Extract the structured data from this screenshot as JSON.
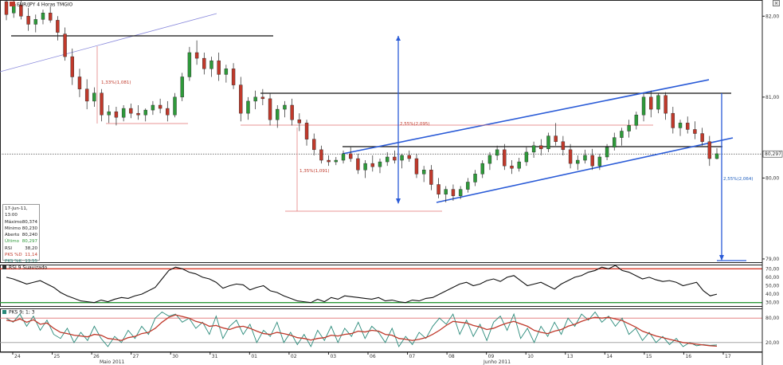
{
  "header": {
    "title": "EUR/JPY 4 Horas TMGIO",
    "rsi_label": "RSI 9 Suavizado",
    "stoch_label": "PKS 9; 1; 3"
  },
  "window": {
    "close_icon": "close-icon"
  },
  "info_panel": {
    "date": "17-Jun-11, 13:00",
    "rows": [
      {
        "label": "Máximo",
        "value": "80,374"
      },
      {
        "label": "Mínimo",
        "value": "80,230"
      },
      {
        "label": "Aberto",
        "value": "80,240"
      },
      {
        "label": "Último",
        "value": "80,297",
        "color": "#2e9a3a"
      },
      {
        "label": "RSI",
        "value": "38,20"
      },
      {
        "label": "PKS %D",
        "value": "11,14",
        "color": "#c0392b"
      },
      {
        "label": "PKS %K",
        "value": "13,55",
        "color": "#2a8a7a"
      }
    ]
  },
  "annotations": {
    "pct1": "1,33%(1,081)",
    "pct2": "2,55%(2,095)",
    "pct3": "1,35%(1,091)",
    "pct4": "2,55%(2,064)"
  },
  "chart_data": [
    {
      "type": "candlestick",
      "panel": "price",
      "y_ticks": [
        "82,00",
        "81,00",
        "80,00",
        "79,00"
      ],
      "ylim": [
        78.95,
        82.2
      ],
      "last_price": "80,297",
      "x_ticks": [
        "24",
        "25",
        "26",
        "27",
        "30",
        "31",
        "01",
        "02",
        "03",
        "06",
        "07",
        "08",
        "09",
        "10",
        "13",
        "14",
        "15",
        "16",
        "17"
      ],
      "x_month_labels": [
        "Maio 2011",
        "Junho 2011"
      ],
      "candles": [
        [
          82.18,
          82.26,
          81.95,
          82.02
        ],
        [
          82.04,
          82.2,
          81.98,
          82.15
        ],
        [
          82.14,
          82.22,
          81.96,
          82.0
        ],
        [
          82.0,
          82.1,
          81.82,
          81.9
        ],
        [
          81.9,
          82.02,
          81.8,
          81.96
        ],
        [
          81.96,
          82.08,
          81.9,
          82.04
        ],
        [
          82.04,
          82.12,
          81.92,
          81.95
        ],
        [
          81.95,
          82.0,
          81.7,
          81.8
        ],
        [
          81.78,
          81.86,
          81.45,
          81.5
        ],
        [
          81.5,
          81.6,
          81.15,
          81.25
        ],
        [
          81.25,
          81.35,
          81.0,
          81.1
        ],
        [
          81.1,
          81.22,
          80.85,
          80.95
        ],
        [
          80.95,
          81.12,
          80.88,
          81.05
        ],
        [
          81.05,
          81.1,
          80.7,
          80.78
        ],
        [
          80.78,
          80.9,
          80.68,
          80.82
        ],
        [
          80.82,
          80.88,
          80.65,
          80.75
        ],
        [
          80.75,
          80.9,
          80.7,
          80.86
        ],
        [
          80.86,
          80.92,
          80.74,
          80.8
        ],
        [
          80.8,
          80.9,
          80.72,
          80.78
        ],
        [
          80.78,
          80.86,
          80.7,
          80.84
        ],
        [
          80.84,
          80.95,
          80.78,
          80.9
        ],
        [
          80.9,
          80.98,
          80.8,
          80.86
        ],
        [
          80.86,
          80.95,
          80.7,
          80.78
        ],
        [
          80.78,
          81.05,
          80.75,
          81.0
        ],
        [
          81.0,
          81.3,
          80.95,
          81.25
        ],
        [
          81.25,
          81.62,
          81.2,
          81.55
        ],
        [
          81.55,
          81.7,
          81.4,
          81.48
        ],
        [
          81.48,
          81.55,
          81.28,
          81.35
        ],
        [
          81.35,
          81.5,
          81.25,
          81.45
        ],
        [
          81.45,
          81.55,
          81.2,
          81.28
        ],
        [
          81.28,
          81.4,
          81.18,
          81.35
        ],
        [
          81.35,
          81.42,
          81.1,
          81.15
        ],
        [
          81.15,
          81.25,
          80.7,
          80.8
        ],
        [
          80.8,
          81.0,
          80.72,
          80.95
        ],
        [
          80.95,
          81.08,
          80.85,
          81.0
        ],
        [
          81.0,
          81.1,
          80.9,
          80.98
        ],
        [
          80.98,
          81.05,
          80.65,
          80.72
        ],
        [
          80.72,
          80.9,
          80.62,
          80.85
        ],
        [
          80.85,
          80.95,
          80.75,
          80.9
        ],
        [
          80.9,
          80.98,
          80.65,
          80.72
        ],
        [
          80.72,
          80.8,
          80.58,
          80.68
        ],
        [
          80.68,
          80.72,
          80.4,
          80.48
        ],
        [
          80.48,
          80.55,
          80.28,
          80.35
        ],
        [
          80.35,
          80.4,
          80.18,
          80.22
        ],
        [
          80.22,
          80.28,
          80.15,
          80.2
        ],
        [
          80.2,
          80.26,
          80.16,
          80.22
        ],
        [
          80.22,
          80.34,
          80.18,
          80.3
        ],
        [
          80.3,
          80.38,
          80.2,
          80.24
        ],
        [
          80.24,
          80.3,
          80.05,
          80.1
        ],
        [
          80.1,
          80.22,
          80.0,
          80.18
        ],
        [
          80.18,
          80.28,
          80.08,
          80.14
        ],
        [
          80.14,
          80.24,
          80.06,
          80.2
        ],
        [
          80.2,
          80.32,
          80.15,
          80.26
        ],
        [
          80.26,
          80.34,
          80.18,
          80.22
        ],
        [
          80.22,
          80.3,
          80.12,
          80.28
        ],
        [
          80.28,
          80.34,
          80.2,
          80.24
        ],
        [
          80.24,
          80.3,
          80.0,
          80.05
        ],
        [
          80.05,
          80.15,
          79.95,
          80.1
        ],
        [
          80.1,
          80.16,
          79.85,
          79.92
        ],
        [
          79.92,
          80.0,
          79.75,
          79.8
        ],
        [
          79.8,
          79.9,
          79.7,
          79.86
        ],
        [
          79.86,
          79.92,
          79.72,
          79.78
        ],
        [
          79.78,
          79.9,
          79.74,
          79.86
        ],
        [
          79.86,
          80.0,
          79.82,
          79.95
        ],
        [
          79.95,
          80.1,
          79.9,
          80.05
        ],
        [
          80.05,
          80.22,
          80.0,
          80.18
        ],
        [
          80.18,
          80.32,
          80.1,
          80.28
        ],
        [
          80.28,
          80.4,
          80.22,
          80.35
        ],
        [
          80.35,
          80.42,
          80.1,
          80.15
        ],
        [
          80.15,
          80.22,
          80.05,
          80.12
        ],
        [
          80.12,
          80.25,
          80.08,
          80.2
        ],
        [
          80.2,
          80.38,
          80.15,
          80.32
        ],
        [
          80.32,
          80.45,
          80.25,
          80.4
        ],
        [
          80.4,
          80.48,
          80.28,
          80.36
        ],
        [
          80.36,
          80.56,
          80.32,
          80.52
        ],
        [
          80.52,
          80.68,
          80.4,
          80.45
        ],
        [
          80.45,
          80.52,
          80.28,
          80.35
        ],
        [
          80.35,
          80.42,
          80.12,
          80.18
        ],
        [
          80.18,
          80.28,
          80.1,
          80.22
        ],
        [
          80.22,
          80.35,
          80.18,
          80.28
        ],
        [
          80.28,
          80.36,
          80.1,
          80.15
        ],
        [
          80.15,
          80.3,
          80.1,
          80.26
        ],
        [
          80.26,
          80.42,
          80.22,
          80.38
        ],
        [
          80.38,
          80.56,
          80.34,
          80.5
        ],
        [
          80.5,
          80.62,
          80.4,
          80.58
        ],
        [
          80.58,
          80.72,
          80.5,
          80.65
        ],
        [
          80.65,
          80.82,
          80.6,
          80.78
        ],
        [
          80.78,
          81.05,
          80.7,
          81.0
        ],
        [
          81.0,
          81.08,
          80.75,
          80.85
        ],
        [
          80.85,
          81.05,
          80.8,
          81.02
        ],
        [
          81.02,
          81.06,
          80.72,
          80.8
        ],
        [
          80.8,
          80.88,
          80.55,
          80.62
        ],
        [
          80.62,
          80.72,
          80.52,
          80.68
        ],
        [
          80.68,
          80.76,
          80.55,
          80.6
        ],
        [
          80.6,
          80.7,
          80.48,
          80.55
        ],
        [
          80.55,
          80.62,
          80.4,
          80.45
        ],
        [
          80.45,
          80.52,
          80.15,
          80.24
        ],
        [
          80.24,
          80.37,
          80.23,
          80.3
        ]
      ]
    },
    {
      "type": "line",
      "panel": "rsi",
      "name": "RSI 9 Suavizado",
      "y_ticks": [
        "70,00",
        "60,00",
        "50,00",
        "40,00",
        "30,00"
      ],
      "ylim": [
        25,
        75
      ],
      "levels": [
        70,
        30
      ],
      "values": [
        60,
        58,
        55,
        52,
        54,
        56,
        52,
        48,
        42,
        38,
        35,
        32,
        31,
        30,
        33,
        31,
        34,
        36,
        35,
        38,
        40,
        44,
        48,
        58,
        68,
        72,
        70,
        66,
        64,
        60,
        58,
        54,
        47,
        50,
        52,
        51,
        45,
        48,
        50,
        44,
        42,
        38,
        35,
        32,
        31,
        30,
        34,
        31,
        36,
        34,
        38,
        37,
        36,
        35,
        34,
        36,
        32,
        33,
        31,
        30,
        33,
        32,
        35,
        36,
        40,
        44,
        48,
        52,
        54,
        50,
        52,
        56,
        58,
        55,
        60,
        62,
        56,
        50,
        52,
        54,
        50,
        46,
        52,
        56,
        60,
        62,
        66,
        68,
        72,
        70,
        74,
        68,
        66,
        62,
        58,
        60,
        57,
        55,
        56,
        54,
        50,
        52,
        54,
        44,
        38,
        40
      ]
    },
    {
      "type": "line",
      "panel": "stochastic",
      "name": "PKS 9; 1; 3",
      "y_ticks": [
        "80,00",
        "20,00"
      ],
      "ylim": [
        0,
        100
      ],
      "levels": [
        80,
        20
      ],
      "series": [
        {
          "name": "PKS %K",
          "color": "#2a8a7a",
          "values": [
            80,
            70,
            90,
            60,
            85,
            50,
            75,
            40,
            30,
            55,
            20,
            45,
            25,
            60,
            30,
            10,
            35,
            20,
            50,
            30,
            60,
            40,
            80,
            95,
            85,
            90,
            70,
            80,
            55,
            70,
            40,
            85,
            30,
            60,
            75,
            40,
            65,
            20,
            50,
            35,
            70,
            20,
            45,
            15,
            40,
            10,
            50,
            25,
            60,
            20,
            55,
            35,
            70,
            30,
            60,
            45,
            20,
            55,
            10,
            35,
            15,
            45,
            30,
            60,
            80,
            65,
            90,
            40,
            75,
            35,
            65,
            25,
            70,
            85,
            50,
            90,
            30,
            55,
            20,
            60,
            35,
            70,
            40,
            80,
            60,
            90,
            75,
            95,
            70,
            85,
            60,
            80,
            40,
            55,
            25,
            45,
            20,
            35,
            15,
            30,
            10,
            20,
            12,
            15,
            13,
            14
          ]
        },
        {
          "name": "PKS %D",
          "color": "#c0392b",
          "values": [
            75,
            72,
            78,
            70,
            76,
            65,
            68,
            55,
            45,
            42,
            38,
            36,
            34,
            40,
            38,
            30,
            28,
            25,
            32,
            35,
            42,
            45,
            55,
            70,
            82,
            88,
            84,
            80,
            72,
            68,
            60,
            62,
            56,
            52,
            58,
            60,
            55,
            48,
            42,
            40,
            45,
            42,
            38,
            32,
            30,
            26,
            30,
            32,
            38,
            36,
            40,
            42,
            48,
            46,
            50,
            48,
            40,
            38,
            30,
            28,
            25,
            28,
            32,
            40,
            50,
            62,
            72,
            70,
            68,
            62,
            58,
            52,
            55,
            62,
            68,
            72,
            66,
            60,
            50,
            45,
            42,
            48,
            52,
            60,
            65,
            72,
            78,
            82,
            80,
            82,
            78,
            74,
            66,
            58,
            48,
            42,
            36,
            32,
            28,
            24,
            20,
            18,
            16,
            14,
            12,
            11
          ]
        }
      ]
    }
  ]
}
